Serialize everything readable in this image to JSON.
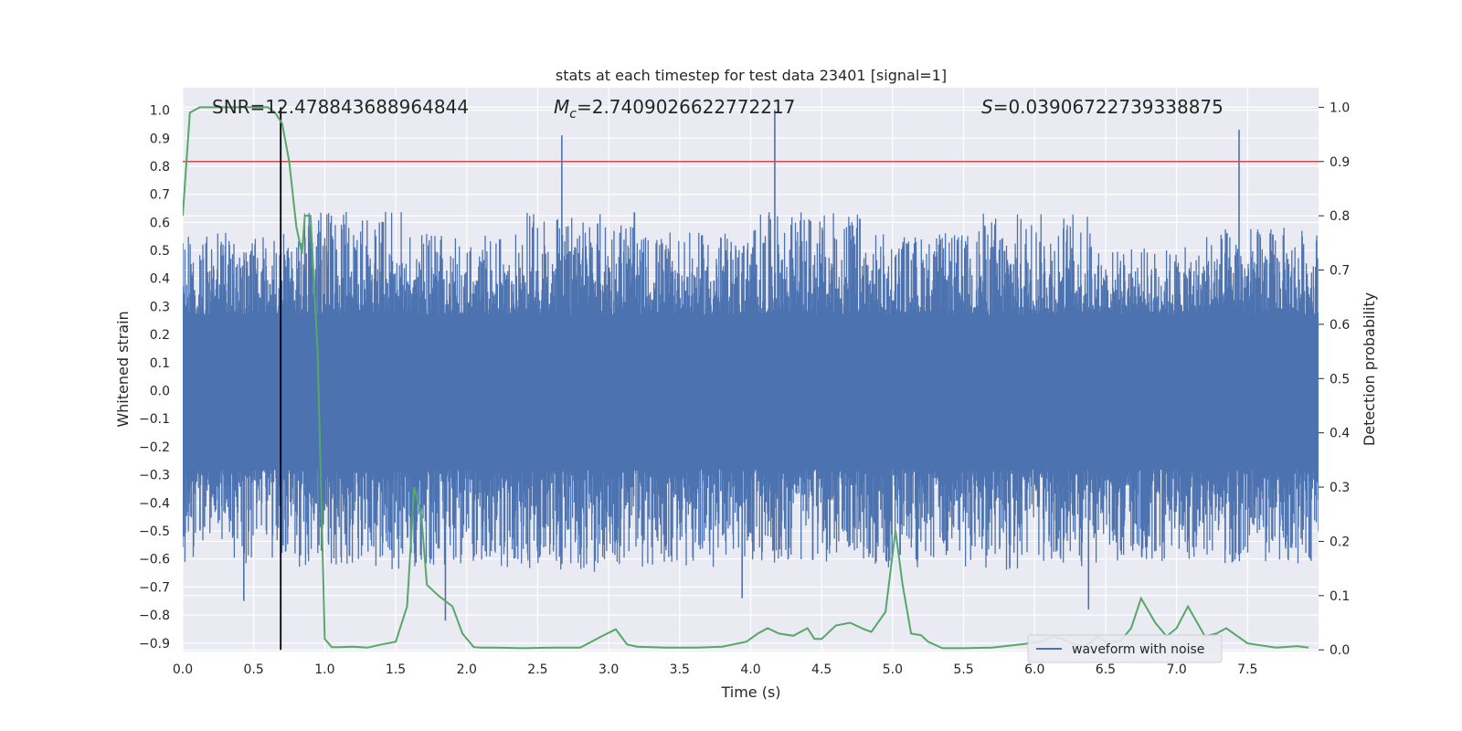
{
  "chart_data": {
    "type": "line",
    "title": "stats at each timestep for test data 23401 [signal=1]",
    "xlabel": "Time (s)",
    "ylabel": "Whitened strain",
    "y2label": "Detection probability",
    "xlim": [
      0.0,
      8.0
    ],
    "ylim": [
      -0.93,
      1.08
    ],
    "y2lim": [
      -0.003,
      1.036
    ],
    "grid": true,
    "xticks": [
      "0.0",
      "0.5",
      "1.0",
      "1.5",
      "2.0",
      "2.5",
      "3.0",
      "3.5",
      "4.0",
      "4.5",
      "5.0",
      "5.5",
      "6.0",
      "6.5",
      "7.0",
      "7.5"
    ],
    "yticks": [
      "−0.9",
      "−0.8",
      "−0.7",
      "−0.6",
      "−0.5",
      "−0.4",
      "−0.3",
      "−0.2",
      "−0.1",
      "0.0",
      "0.1",
      "0.2",
      "0.3",
      "0.4",
      "0.5",
      "0.6",
      "0.7",
      "0.8",
      "0.9",
      "1.0"
    ],
    "y2ticks": [
      "0.0",
      "0.1",
      "0.2",
      "0.3",
      "0.4",
      "0.5",
      "0.6",
      "0.7",
      "0.8",
      "0.9",
      "1.0"
    ],
    "annotations": {
      "snr": "SNR=12.478843688964844",
      "mc_symbol": "M",
      "mc_subscript": "c",
      "mc_value": "=2.7409026622772217",
      "s_symbol": "S",
      "s_value": "=0.03906722739338875"
    },
    "legend": {
      "label": "waveform with noise",
      "placement": "lower-right"
    },
    "threshold_line": {
      "y2": 0.9,
      "color": "#c44e52"
    },
    "marker_line": {
      "x": 0.69,
      "color": "#000000"
    },
    "colors": {
      "waveform": "#4c72b0",
      "probability": "#55a868",
      "background": "#eaeaf2"
    },
    "series": [
      {
        "name": "waveform with noise",
        "axis": "left",
        "kind": "dense-noise",
        "envelope_upper": [
          0.55,
          0.62,
          0.55,
          0.62,
          0.55,
          0.62,
          0.55,
          0.62,
          0.5,
          0.57
        ],
        "envelope_lower": [
          -0.6,
          -0.62,
          -0.62,
          -0.63,
          -0.62,
          -0.6,
          -0.62,
          -0.63,
          -0.6,
          -0.6
        ],
        "spikes": [
          {
            "x": 2.67,
            "y": 0.91
          },
          {
            "x": 4.17,
            "y": 1.0
          },
          {
            "x": 7.44,
            "y": 0.93
          },
          {
            "x": 1.85,
            "y": -0.82
          },
          {
            "x": 0.43,
            "y": -0.75
          },
          {
            "x": 3.94,
            "y": -0.74
          },
          {
            "x": 6.38,
            "y": -0.78
          }
        ]
      },
      {
        "name": "detection probability",
        "axis": "right",
        "x": [
          0.0,
          0.05,
          0.12,
          0.2,
          0.3,
          0.4,
          0.5,
          0.6,
          0.65,
          0.7,
          0.75,
          0.8,
          0.84,
          0.86,
          0.9,
          0.95,
          1.0,
          1.05,
          1.1,
          1.2,
          1.3,
          1.4,
          1.5,
          1.58,
          1.63,
          1.68,
          1.72,
          1.8,
          1.9,
          1.97,
          2.05,
          2.1,
          2.2,
          2.4,
          2.6,
          2.8,
          2.95,
          3.05,
          3.13,
          3.2,
          3.4,
          3.6,
          3.8,
          3.97,
          4.05,
          4.12,
          4.2,
          4.3,
          4.4,
          4.45,
          4.5,
          4.6,
          4.7,
          4.8,
          4.85,
          4.95,
          5.02,
          5.07,
          5.13,
          5.2,
          5.25,
          5.35,
          5.5,
          5.7,
          5.9,
          6.05,
          6.13,
          6.2,
          6.28,
          6.35,
          6.45,
          6.5,
          6.6,
          6.68,
          6.75,
          6.85,
          6.93,
          7.0,
          7.08,
          7.2,
          7.28,
          7.35,
          7.5,
          7.7,
          7.85,
          7.93
        ],
        "values": [
          0.8,
          0.99,
          1.0,
          1.0,
          1.0,
          1.0,
          1.0,
          1.0,
          0.99,
          0.97,
          0.9,
          0.78,
          0.73,
          0.8,
          0.8,
          0.55,
          0.02,
          0.005,
          0.005,
          0.006,
          0.004,
          0.01,
          0.015,
          0.08,
          0.3,
          0.25,
          0.12,
          0.1,
          0.08,
          0.03,
          0.005,
          0.004,
          0.004,
          0.003,
          0.004,
          0.004,
          0.025,
          0.038,
          0.01,
          0.006,
          0.004,
          0.004,
          0.006,
          0.015,
          0.03,
          0.04,
          0.03,
          0.026,
          0.04,
          0.02,
          0.02,
          0.045,
          0.05,
          0.038,
          0.033,
          0.07,
          0.22,
          0.12,
          0.03,
          0.027,
          0.015,
          0.003,
          0.003,
          0.004,
          0.01,
          0.015,
          0.025,
          0.02,
          0.01,
          0.006,
          0.025,
          0.015,
          0.015,
          0.04,
          0.095,
          0.05,
          0.025,
          0.04,
          0.08,
          0.025,
          0.03,
          0.04,
          0.012,
          0.004,
          0.007,
          0.004
        ]
      }
    ]
  }
}
